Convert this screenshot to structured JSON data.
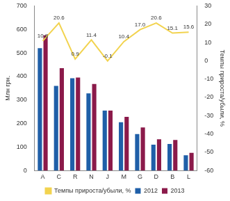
{
  "chart_data": {
    "type": "bar",
    "categories": [
      "A",
      "C",
      "R",
      "N",
      "J",
      "M",
      "G",
      "D",
      "B",
      "L"
    ],
    "y_label": "Млн грн.",
    "y2_label": "Темпы прироста/убыли, %",
    "ylim": [
      0,
      700
    ],
    "yticks": [
      0,
      100,
      200,
      300,
      400,
      500,
      600,
      700
    ],
    "y2lim": [
      -60,
      30
    ],
    "y2ticks": [
      -60,
      -50,
      -40,
      -30,
      -20,
      -10,
      0,
      10,
      20,
      30
    ],
    "grid": false,
    "legend": "bottom",
    "series": [
      {
        "name": "2012",
        "color": "#1f5fa8",
        "values": [
          520,
          360,
          392,
          328,
          255,
          205,
          155,
          110,
          113,
          65
        ]
      },
      {
        "name": "2013",
        "color": "#8b1a4a",
        "values": [
          575,
          435,
          395,
          368,
          255,
          228,
          183,
          133,
          130,
          75
        ]
      },
      {
        "name": "Темпы прироста/убыли, %",
        "type": "line",
        "color": "#f2d34f",
        "axis": "y2",
        "data_labels": true,
        "values": [
          10.8,
          20.6,
          0.9,
          11.4,
          -0.1,
          10.4,
          17.0,
          20.6,
          15.1,
          15.6
        ],
        "value_labels": [
          "10.8",
          "20.6",
          "0.9",
          "11.4",
          "-0.1",
          "10.4",
          "17.0",
          "20.6",
          "15.1",
          "15.6"
        ]
      }
    ]
  }
}
